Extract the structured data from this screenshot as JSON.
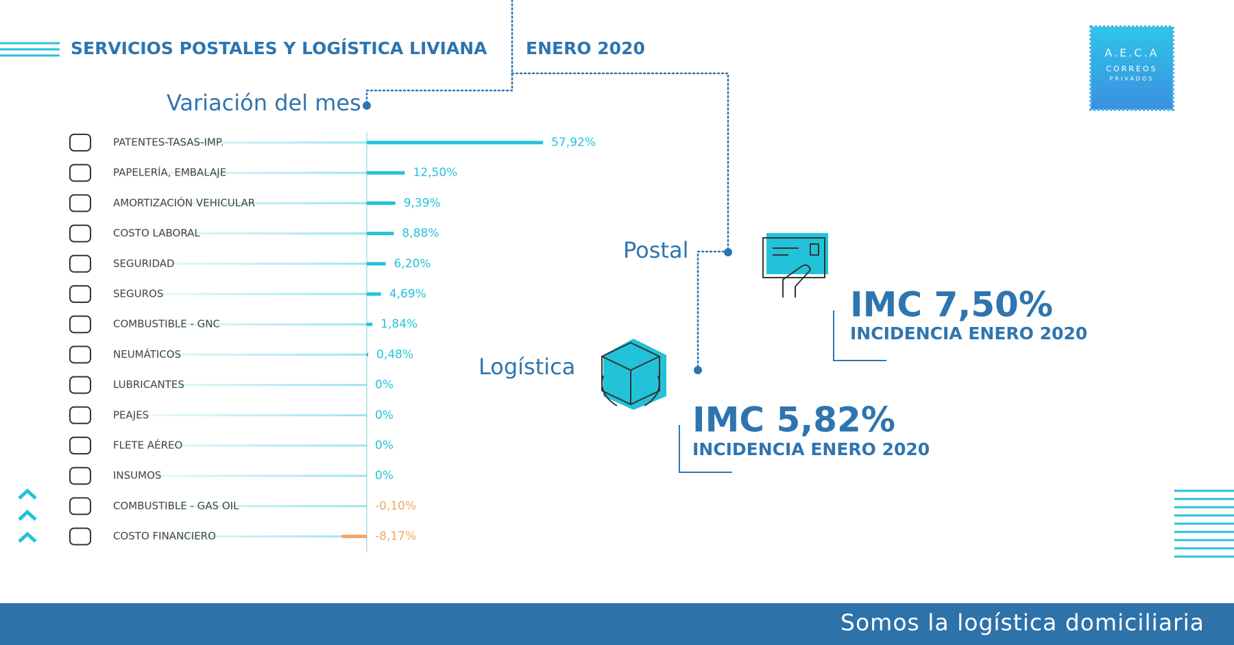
{
  "header": {
    "title": "SERVICIOS POSTALES Y LOGÍSTICA LIVIANA",
    "period": "ENERO 2020"
  },
  "logo": {
    "name": "A.E.C.A",
    "line1": "CORREOS",
    "line2": "PRIVADOS"
  },
  "chart_data": {
    "type": "bar",
    "orientation": "horizontal",
    "title": "Variación del mes",
    "categories": [
      "PATENTES-TASAS-IMP.",
      "PAPELERÍA, EMBALAJE",
      "AMORTIZACIÓN VEHICULAR",
      "COSTO LABORAL",
      "SEGURIDAD",
      "SEGUROS",
      "COMBUSTIBLE - GNC",
      "NEUMÁTICOS",
      "LUBRICANTES",
      "PEAJES",
      "FLETE AÉREO",
      "INSUMOS",
      "COMBUSTIBLE - GAS OIL",
      "COSTO FINANCIERO"
    ],
    "values": [
      57.92,
      12.5,
      9.39,
      8.88,
      6.2,
      4.69,
      1.84,
      0.48,
      0,
      0,
      0,
      0,
      -0.1,
      -8.17
    ],
    "value_labels": [
      "57,92%",
      "12,50%",
      "9,39%",
      "8,88%",
      "6,20%",
      "4,69%",
      "1,84%",
      "0,48%",
      "0%",
      "0%",
      "0%",
      "0%",
      "-0,10%",
      "-8,17%"
    ],
    "color": "#22c3d8",
    "negative_color": "#f2a65e"
  },
  "postal": {
    "label": "Postal",
    "imc": "IMC 7,50%",
    "caption": "INCIDENCIA ENERO 2020"
  },
  "logistica": {
    "label": "Logística",
    "imc": "IMC 5,82%",
    "caption": "INCIDENCIA ENERO 2020"
  },
  "footer": {
    "slogan": "Somos la logística domiciliaria"
  }
}
